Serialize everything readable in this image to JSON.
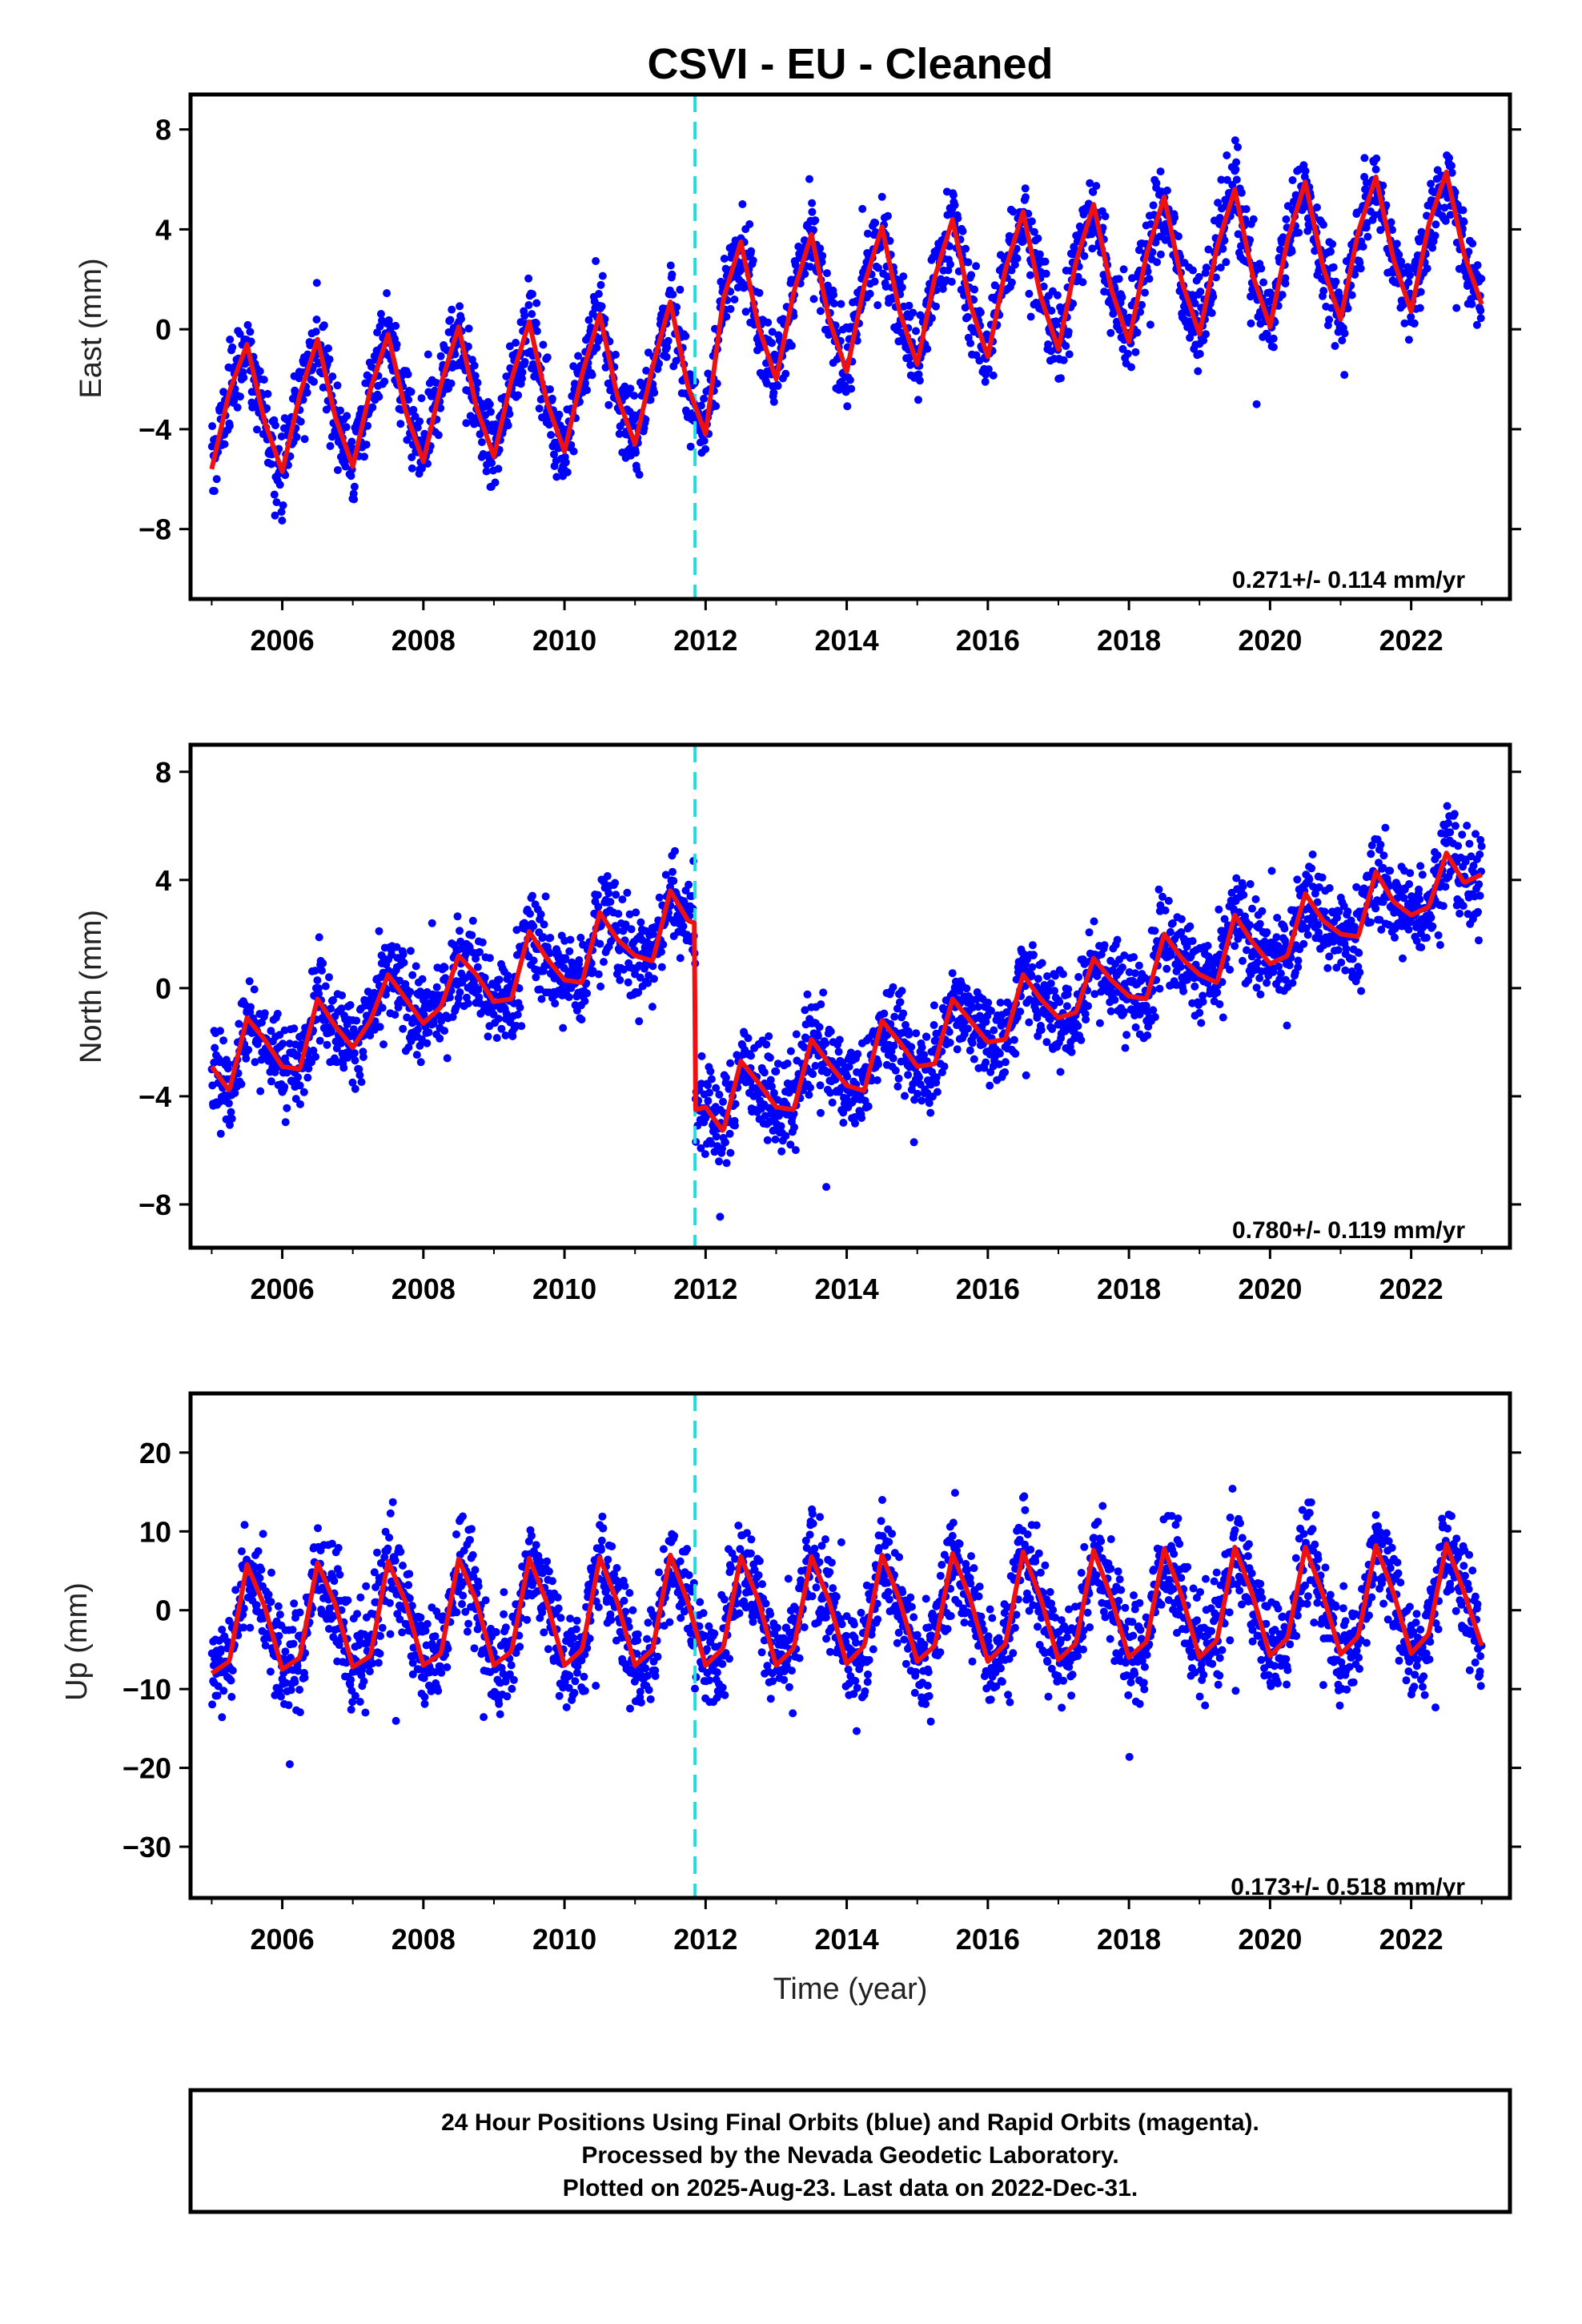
{
  "title": "CSVI  - EU - Cleaned",
  "x_axis_label": "Time (year)",
  "footer": {
    "line1": "24 Hour Positions Using Final Orbits (blue) and Rapid Orbits (magenta).",
    "line2": "Processed by the Nevada Geodetic Laboratory.",
    "line3": "Plotted on 2025-Aug-23. Last data on 2022-Dec-31."
  },
  "colors": {
    "points": "#0000ff",
    "model": "#ee1111",
    "offset_line": "#22dddd",
    "frame": "#000000"
  },
  "chart_data": [
    {
      "type": "scatter",
      "ylabel": "East (mm)",
      "xlim": [
        2004.7,
        2023.4
      ],
      "ylim": [
        -10.8,
        9.4
      ],
      "yticks": [
        -8,
        -4,
        0,
        4,
        8
      ],
      "xticks": [
        2006,
        2008,
        2010,
        2012,
        2014,
        2016,
        2018,
        2020,
        2022
      ],
      "offset_epoch": 2011.85,
      "rate_text": "0.271+/- 0.114 mm/yr",
      "data_range": [
        2005.0,
        2023.0
      ],
      "model_samples": {
        "x": [
          2005.0,
          2005.25,
          2005.5,
          2005.75,
          2006.0,
          2006.25,
          2006.5,
          2006.75,
          2007.0,
          2007.25,
          2007.5,
          2007.75,
          2008.0,
          2008.25,
          2008.5,
          2008.75,
          2009.0,
          2009.25,
          2009.5,
          2009.75,
          2010.0,
          2010.25,
          2010.5,
          2010.75,
          2011.0,
          2011.25,
          2011.5,
          2011.75,
          2012.0,
          2012.25,
          2012.5,
          2012.75,
          2013.0,
          2013.25,
          2013.5,
          2013.75,
          2014.0,
          2014.25,
          2014.5,
          2014.75,
          2015.0,
          2015.25,
          2015.5,
          2015.75,
          2016.0,
          2016.25,
          2016.5,
          2016.75,
          2017.0,
          2017.25,
          2017.5,
          2017.75,
          2018.0,
          2018.25,
          2018.5,
          2018.75,
          2019.0,
          2019.25,
          2019.5,
          2019.75,
          2020.0,
          2020.25,
          2020.5,
          2020.75,
          2021.0,
          2021.25,
          2021.5,
          2021.75,
          2022.0,
          2022.25,
          2022.5,
          2022.75,
          2023.0
        ],
        "y": [
          -5.6,
          -2.5,
          -0.6,
          -3.7,
          -5.7,
          -2.6,
          -0.4,
          -3.5,
          -5.5,
          -2.4,
          -0.2,
          -3.3,
          -5.3,
          -2.2,
          0.1,
          -3.1,
          -5.1,
          -2.0,
          0.3,
          -2.9,
          -4.9,
          -1.8,
          0.6,
          -2.7,
          -4.6,
          -1.5,
          1.1,
          -2.3,
          -4.2,
          1.2,
          3.5,
          0.1,
          -2.0,
          1.5,
          3.8,
          0.4,
          -1.7,
          1.8,
          4.1,
          0.7,
          -1.4,
          2.1,
          4.4,
          1.0,
          -1.1,
          2.4,
          4.7,
          1.3,
          -0.8,
          2.7,
          5.0,
          1.6,
          -0.5,
          3.0,
          5.3,
          1.9,
          -0.2,
          3.3,
          5.6,
          2.2,
          0.1,
          3.6,
          5.9,
          2.5,
          0.4,
          3.9,
          6.1,
          2.8,
          0.7,
          4.2,
          6.3,
          3.0,
          1.0
        ]
      }
    },
    {
      "type": "scatter",
      "ylabel": "North (mm)",
      "xlim": [
        2004.7,
        2023.4
      ],
      "ylim": [
        -9.6,
        9.0
      ],
      "yticks": [
        -8,
        -4,
        0,
        4,
        8
      ],
      "xticks": [
        2006,
        2008,
        2010,
        2012,
        2014,
        2016,
        2018,
        2020,
        2022
      ],
      "offset_epoch": 2011.85,
      "rate_text": "0.780+/- 0.119 mm/yr",
      "data_range": [
        2005.0,
        2023.0
      ],
      "model_samples": {
        "x": [
          2005.0,
          2005.25,
          2005.5,
          2005.75,
          2006.0,
          2006.25,
          2006.5,
          2006.75,
          2007.0,
          2007.25,
          2007.5,
          2007.75,
          2008.0,
          2008.25,
          2008.5,
          2008.75,
          2009.0,
          2009.25,
          2009.5,
          2009.75,
          2010.0,
          2010.25,
          2010.5,
          2010.75,
          2011.0,
          2011.25,
          2011.5,
          2011.75,
          2011.85,
          2011.86,
          2012.0,
          2012.25,
          2012.5,
          2012.75,
          2013.0,
          2013.25,
          2013.5,
          2013.75,
          2014.0,
          2014.25,
          2014.5,
          2014.75,
          2015.0,
          2015.25,
          2015.5,
          2015.75,
          2016.0,
          2016.25,
          2016.5,
          2016.75,
          2017.0,
          2017.25,
          2017.5,
          2017.75,
          2018.0,
          2018.25,
          2018.5,
          2018.75,
          2019.0,
          2019.25,
          2019.5,
          2019.75,
          2020.0,
          2020.25,
          2020.5,
          2020.75,
          2021.0,
          2021.25,
          2021.5,
          2021.75,
          2022.0,
          2022.25,
          2022.5,
          2022.75,
          2023.0
        ],
        "y": [
          -2.9,
          -3.8,
          -1.1,
          -1.9,
          -2.9,
          -3.0,
          -0.4,
          -1.4,
          -2.2,
          -1.2,
          0.5,
          -0.4,
          -1.3,
          -0.7,
          1.2,
          0.5,
          -0.5,
          -0.4,
          2.1,
          1.1,
          0.3,
          0.2,
          2.8,
          1.8,
          1.2,
          1.0,
          3.6,
          2.5,
          2.4,
          -4.5,
          -4.4,
          -5.3,
          -2.7,
          -3.5,
          -4.4,
          -4.5,
          -1.9,
          -2.8,
          -3.6,
          -3.8,
          -1.2,
          -2.0,
          -2.9,
          -2.8,
          -0.4,
          -1.2,
          -2.0,
          -1.9,
          0.5,
          -0.4,
          -1.1,
          -0.9,
          1.1,
          0.3,
          -0.3,
          -0.4,
          2.0,
          1.1,
          0.5,
          0.2,
          2.7,
          1.7,
          0.9,
          1.2,
          3.5,
          2.5,
          2.0,
          1.9,
          4.3,
          3.2,
          2.7,
          3.0,
          5.0,
          3.9,
          4.2
        ]
      }
    },
    {
      "type": "scatter",
      "ylabel": "Up (mm)",
      "xlim": [
        2004.7,
        2023.4
      ],
      "ylim": [
        -36.5,
        27.5
      ],
      "yticks": [
        -30,
        -20,
        -10,
        0,
        10,
        20
      ],
      "xticks": [
        2006,
        2008,
        2010,
        2012,
        2014,
        2016,
        2018,
        2020,
        2022
      ],
      "offset_epoch": 2011.85,
      "rate_text": "0.173+/- 0.518 mm/yr",
      "data_range": [
        2005.0,
        2023.0
      ],
      "model_samples": {
        "x": [
          2005.0,
          2005.25,
          2005.5,
          2005.75,
          2006.0,
          2006.25,
          2006.5,
          2006.75,
          2007.0,
          2007.25,
          2007.5,
          2007.75,
          2008.0,
          2008.25,
          2008.5,
          2008.75,
          2009.0,
          2009.25,
          2009.5,
          2009.75,
          2010.0,
          2010.25,
          2010.5,
          2010.75,
          2011.0,
          2011.25,
          2011.5,
          2011.75,
          2012.0,
          2012.25,
          2012.5,
          2012.75,
          2013.0,
          2013.25,
          2013.5,
          2013.75,
          2014.0,
          2014.25,
          2014.5,
          2014.75,
          2015.0,
          2015.25,
          2015.5,
          2015.75,
          2016.0,
          2016.25,
          2016.5,
          2016.75,
          2017.0,
          2017.25,
          2017.5,
          2017.75,
          2018.0,
          2018.25,
          2018.5,
          2018.75,
          2019.0,
          2019.25,
          2019.5,
          2019.75,
          2020.0,
          2020.25,
          2020.5,
          2020.75,
          2021.0,
          2021.25,
          2021.5,
          2021.75,
          2022.0,
          2022.25,
          2022.5,
          2022.75,
          2023.0
        ],
        "y": [
          -8.0,
          -6.5,
          5.8,
          0.5,
          -7.5,
          -6.0,
          6.0,
          0.8,
          -7.2,
          -5.8,
          6.2,
          1.0,
          -7.0,
          -5.5,
          6.5,
          1.2,
          -7.0,
          -5.2,
          6.6,
          1.0,
          -7.0,
          -5.0,
          6.7,
          1.0,
          -7.0,
          -5.0,
          7.0,
          1.0,
          -7.0,
          -4.8,
          6.8,
          1.2,
          -7.0,
          -4.8,
          6.8,
          1.2,
          -6.8,
          -4.5,
          7.0,
          1.3,
          -6.5,
          -4.5,
          7.2,
          1.5,
          -6.5,
          -4.3,
          7.4,
          1.5,
          -6.3,
          -4.2,
          7.6,
          1.6,
          -6.0,
          -4.0,
          7.8,
          1.8,
          -6.0,
          -3.8,
          8.0,
          2.0,
          -5.8,
          -3.5,
          8.0,
          2.0,
          -5.6,
          -3.3,
          8.2,
          2.2,
          -5.5,
          -3.0,
          8.4,
          2.3,
          -4.5
        ]
      }
    }
  ]
}
